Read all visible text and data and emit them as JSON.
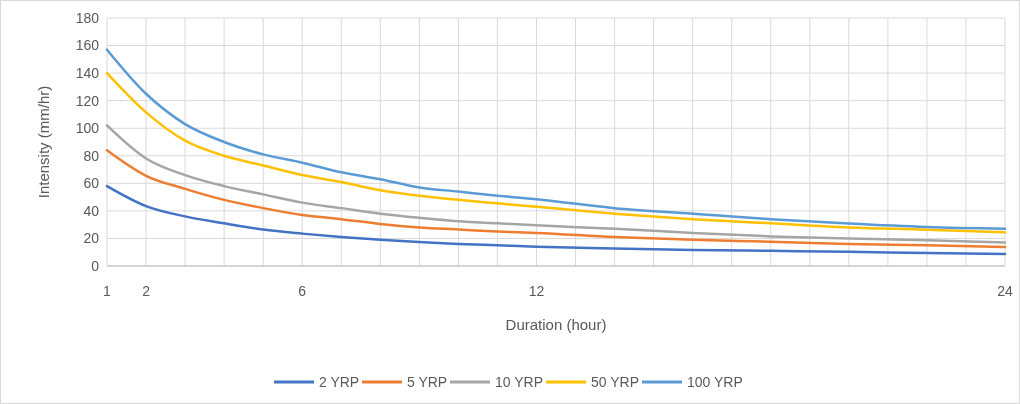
{
  "chart_data": {
    "type": "line",
    "xlabel": "Duration (hour)",
    "ylabel": "Intensity (mm/hr)",
    "x": [
      1,
      2,
      3,
      4,
      5,
      6,
      7,
      8,
      9,
      10,
      11,
      12,
      14,
      16,
      18,
      20,
      22,
      24
    ],
    "xlim": [
      1,
      24
    ],
    "xticks": [
      1,
      2,
      {
        "value": 3,
        "label": null
      },
      {
        "value": 4,
        "label": null
      },
      {
        "value": 5,
        "label": null
      },
      6,
      {
        "value": 7,
        "label": null
      },
      {
        "value": 8,
        "label": null
      },
      {
        "value": 9,
        "label": null
      },
      {
        "value": 10,
        "label": null
      },
      {
        "value": 11,
        "label": null
      },
      12,
      {
        "value": 13,
        "label": null
      },
      {
        "value": 14,
        "label": null
      },
      {
        "value": 15,
        "label": null
      },
      {
        "value": 16,
        "label": null
      },
      {
        "value": 17,
        "label": null
      },
      {
        "value": 18,
        "label": null
      },
      {
        "value": 19,
        "label": null
      },
      {
        "value": 20,
        "label": null
      },
      {
        "value": 21,
        "label": null
      },
      {
        "value": 22,
        "label": null
      },
      {
        "value": 23,
        "label": null
      },
      24
    ],
    "ylim": [
      0,
      180
    ],
    "yticks": [
      0,
      20,
      40,
      60,
      80,
      100,
      120,
      140,
      160,
      180
    ],
    "grid": true,
    "legend": "bottom",
    "marker": "none",
    "line_style": "solid",
    "series": [
      {
        "name": "2 YRP",
        "color": "#4472c4",
        "values": [
          58,
          43.5,
          36,
          31,
          26.5,
          23.5,
          21,
          19,
          17.5,
          16,
          15,
          14,
          12.7,
          11.7,
          11,
          10.3,
          9.5,
          8.8
        ]
      },
      {
        "name": "5 YRP",
        "color": "#ed7d31",
        "values": [
          84,
          65.5,
          56,
          48,
          42,
          37,
          34,
          30.5,
          28,
          26.5,
          25,
          24,
          21,
          19,
          17.6,
          16,
          15,
          13.7
        ]
      },
      {
        "name": "10 YRP",
        "color": "#a5a5a5",
        "values": [
          102,
          78,
          66,
          58,
          52,
          46,
          42,
          38,
          35,
          32.5,
          31,
          29.5,
          27,
          24,
          21.5,
          20,
          18.7,
          17
        ]
      },
      {
        "name": "50 YRP",
        "color": "#ffc000",
        "values": [
          140,
          111.5,
          91,
          80,
          73,
          66,
          61,
          55,
          51,
          48,
          45.5,
          43,
          38,
          34,
          31,
          28,
          26.4,
          24.4
        ]
      },
      {
        "name": "100 YRP",
        "color": "#5b9bd5",
        "values": [
          157,
          125,
          103,
          90,
          81,
          75,
          68,
          63,
          57,
          54,
          51,
          48.5,
          42,
          38,
          34,
          30.8,
          28.3,
          27
        ]
      }
    ]
  }
}
